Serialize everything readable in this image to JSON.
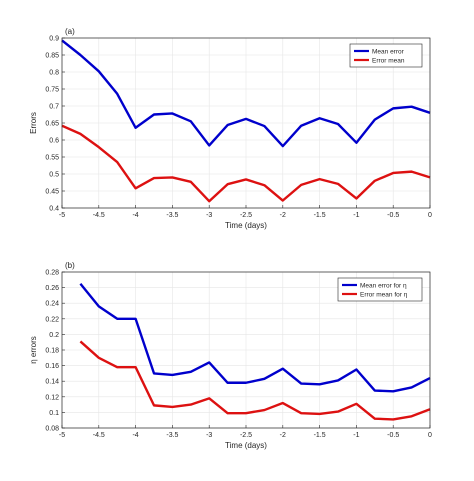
{
  "chart_data": [
    {
      "type": "line",
      "panel_label": "(a)",
      "xlabel": "Time (days)",
      "ylabel": "Errors",
      "xlim": [
        -5,
        0
      ],
      "ylim": [
        0.4,
        0.9
      ],
      "xticks": [
        -5,
        -4.5,
        -4,
        -3.5,
        -3,
        -2.5,
        -2,
        -1.5,
        -1,
        -0.5,
        0
      ],
      "yticks": [
        0.4,
        0.45,
        0.5,
        0.55,
        0.6,
        0.65,
        0.7,
        0.75,
        0.8,
        0.85,
        0.9
      ],
      "xtick_labels": [
        "-5",
        "-4.5",
        "-4",
        "-3.5",
        "-3",
        "-2.5",
        "-2",
        "-1.5",
        "-1",
        "-0.5",
        "0"
      ],
      "ytick_labels": [
        "0.4",
        "0.45",
        "0.5",
        "0.55",
        "0.6",
        "0.65",
        "0.7",
        "0.75",
        "0.8",
        "0.85",
        "0.9"
      ],
      "grid": true,
      "legend": "top-right",
      "x": [
        -5,
        -4.75,
        -4.5,
        -4.25,
        -4,
        -3.75,
        -3.5,
        -3.25,
        -3,
        -2.75,
        -2.5,
        -2.25,
        -2,
        -1.75,
        -1.5,
        -1.25,
        -1,
        -0.75,
        -0.5,
        -0.25,
        0
      ],
      "series": [
        {
          "name": "Mean error",
          "color": "#0000cc",
          "values": [
            0.893,
            0.85,
            0.802,
            0.736,
            0.636,
            0.675,
            0.678,
            0.655,
            0.584,
            0.644,
            0.662,
            0.641,
            0.582,
            0.642,
            0.664,
            0.647,
            0.592,
            0.66,
            0.693,
            0.698,
            0.68
          ]
        },
        {
          "name": "Error mean",
          "color": "#dd1111",
          "values": [
            0.642,
            0.618,
            0.579,
            0.535,
            0.458,
            0.488,
            0.49,
            0.477,
            0.42,
            0.47,
            0.484,
            0.467,
            0.422,
            0.468,
            0.485,
            0.471,
            0.428,
            0.48,
            0.503,
            0.507,
            0.49
          ]
        }
      ]
    },
    {
      "type": "line",
      "panel_label": "(b)",
      "xlabel": "Time (days)",
      "ylabel": "η errors",
      "xlim": [
        -5,
        0
      ],
      "ylim": [
        0.08,
        0.28
      ],
      "xticks": [
        -5,
        -4.5,
        -4,
        -3.5,
        -3,
        -2.5,
        -2,
        -1.5,
        -1,
        -0.5,
        0
      ],
      "yticks": [
        0.08,
        0.1,
        0.12,
        0.14,
        0.16,
        0.18,
        0.2,
        0.22,
        0.24,
        0.26,
        0.28
      ],
      "xtick_labels": [
        "-5",
        "-4.5",
        "-4",
        "-3.5",
        "-3",
        "-2.5",
        "-2",
        "-1.5",
        "-1",
        "-0.5",
        "0"
      ],
      "ytick_labels": [
        "0.08",
        "0.1",
        "0.12",
        "0.14",
        "0.16",
        "0.18",
        "0.2",
        "0.22",
        "0.24",
        "0.26",
        "0.28"
      ],
      "grid": true,
      "legend": "top-right",
      "x": [
        -4.75,
        -4.5,
        -4.25,
        -4,
        -3.75,
        -3.5,
        -3.25,
        -3,
        -2.75,
        -2.5,
        -2.25,
        -2,
        -1.75,
        -1.5,
        -1.25,
        -1,
        -0.75,
        -0.5,
        -0.25,
        0
      ],
      "series": [
        {
          "name": "Mean error for η",
          "color": "#0000cc",
          "values": [
            0.265,
            0.236,
            0.22,
            0.22,
            0.15,
            0.148,
            0.152,
            0.164,
            0.138,
            0.138,
            0.143,
            0.156,
            0.137,
            0.136,
            0.141,
            0.155,
            0.128,
            0.127,
            0.132,
            0.144
          ]
        },
        {
          "name": "Error mean for η",
          "color": "#dd1111",
          "values": [
            0.191,
            0.17,
            0.158,
            0.158,
            0.109,
            0.107,
            0.11,
            0.118,
            0.099,
            0.099,
            0.103,
            0.112,
            0.099,
            0.098,
            0.101,
            0.111,
            0.092,
            0.091,
            0.095,
            0.104
          ]
        }
      ]
    }
  ]
}
